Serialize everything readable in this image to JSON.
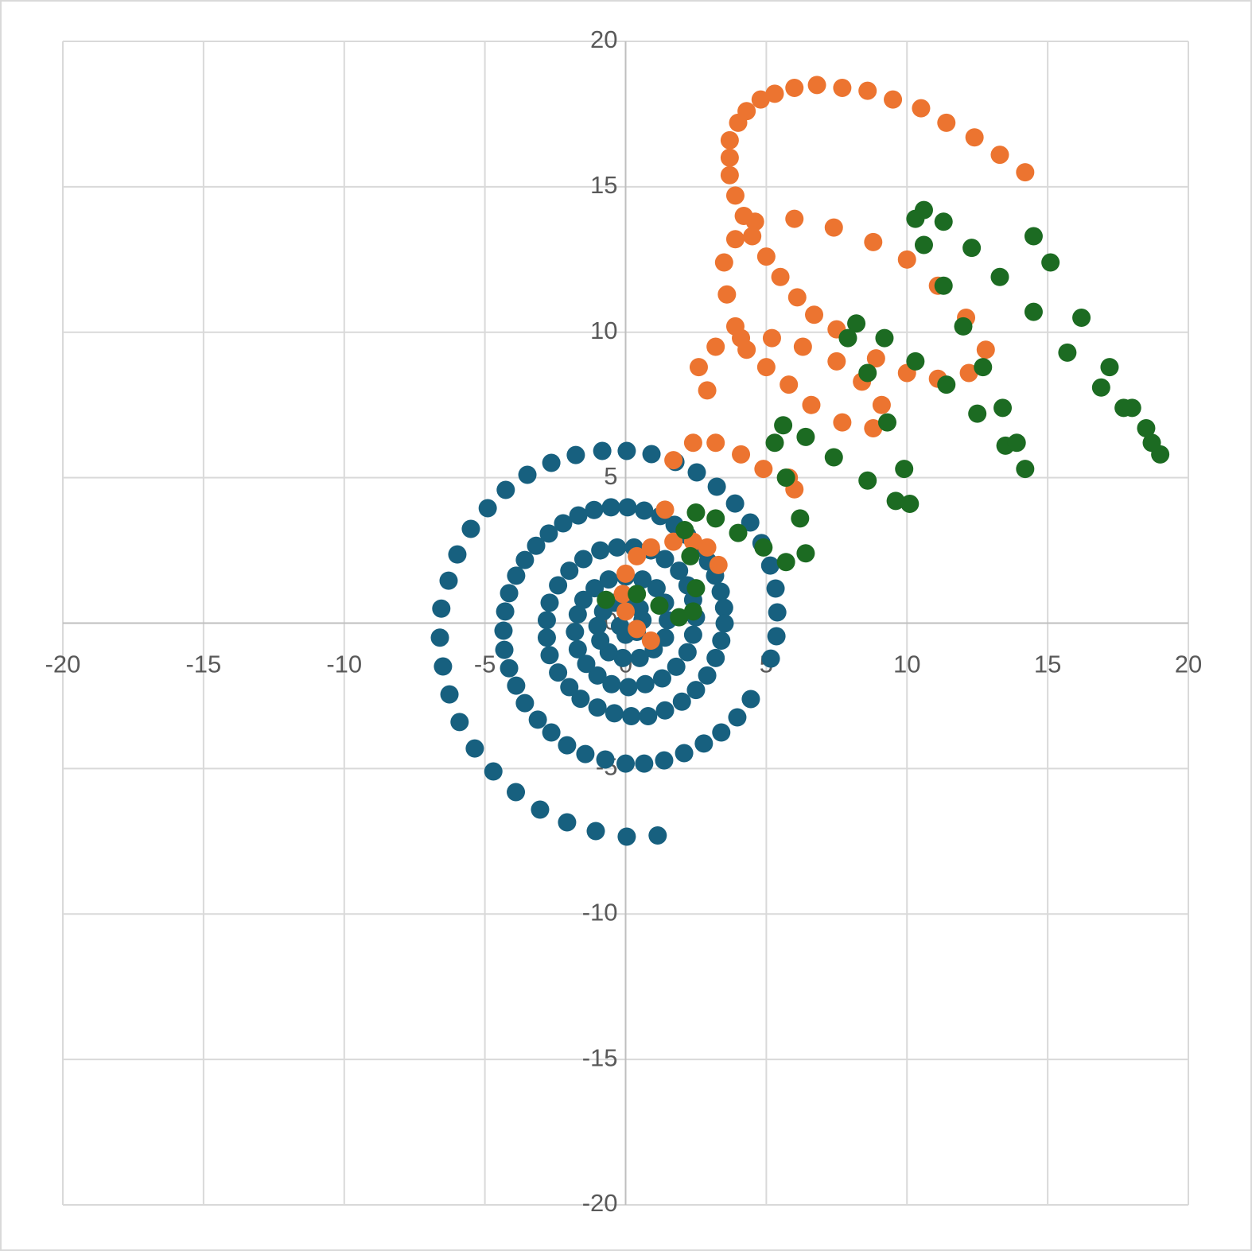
{
  "chart_data": {
    "type": "scatter",
    "grid": true,
    "xlim": [
      -20,
      20
    ],
    "ylim": [
      -20,
      20
    ],
    "xticks": [
      -20,
      -15,
      -10,
      -5,
      0,
      5,
      10,
      15,
      20
    ],
    "yticks": [
      -20,
      -15,
      -10,
      -5,
      0,
      5,
      10,
      15,
      20
    ],
    "series": [
      {
        "color": "#17607f",
        "x": [
          1.14,
          0.04,
          -1.06,
          -2.08,
          -3.04,
          -3.9,
          -4.7,
          -5.36,
          -5.9,
          -6.26,
          -6.49,
          -6.6,
          -6.55,
          -6.29,
          -5.98,
          -5.5,
          -4.9,
          -4.26,
          -3.49,
          -2.64,
          -1.77,
          -0.83,
          0.04,
          0.92,
          1.77,
          2.53,
          3.24,
          3.89,
          4.43,
          4.83,
          5.14,
          5.33,
          5.39,
          5.36,
          5.16,
          4.45,
          3.97,
          3.4,
          2.78,
          2.08,
          1.37,
          0.66,
          0,
          -0.72,
          -1.43,
          -2.08,
          -2.64,
          -3.12,
          -3.58,
          -3.89,
          -4.14,
          -4.31,
          -4.34,
          -4.28,
          -4.14,
          -3.89,
          -3.58,
          -3.18,
          -2.73,
          -2.22,
          -1.68,
          -1.12,
          -0.52,
          0.07,
          0.66,
          1.23,
          1.74,
          2.19,
          2.59,
          2.93,
          3.18,
          3.38,
          3.5,
          3.52,
          3.4,
          3.2,
          2.9,
          2.5,
          2.0,
          1.4,
          0.8,
          0.2,
          -0.4,
          -1.0,
          -1.6,
          -2.0,
          -2.4,
          -2.7,
          -2.8,
          -2.8,
          -2.7,
          -2.4,
          -2.0,
          -1.5,
          -0.9,
          -0.3,
          0.3,
          0.9,
          1.4,
          1.9,
          2.2,
          2.4,
          2.5,
          2.4,
          2.2,
          1.8,
          1.3,
          0.7,
          0.1,
          -0.5,
          -1.0,
          -1.4,
          -1.7,
          -1.8,
          -1.7,
          -1.5,
          -1.1,
          -0.6,
          0,
          0.6,
          1.1,
          1.4,
          1.5,
          1.4,
          1.0,
          0.5,
          -0.1,
          -0.6,
          -0.9,
          -1.0,
          -0.8,
          -0.4,
          0.1,
          0.5,
          0.6,
          0.4,
          0,
          -0.2
        ],
        "values": [
          -7.3,
          -7.34,
          -7.15,
          -6.85,
          -6.41,
          -5.81,
          -5.1,
          -4.31,
          -3.4,
          -2.45,
          -1.49,
          -0.5,
          0.5,
          1.46,
          2.36,
          3.24,
          3.95,
          4.58,
          5.1,
          5.51,
          5.78,
          5.92,
          5.92,
          5.81,
          5.54,
          5.18,
          4.69,
          4.11,
          3.46,
          2.75,
          1.98,
          1.19,
          0.37,
          -0.45,
          -1.22,
          -2.61,
          -3.24,
          -3.76,
          -4.14,
          -4.47,
          -4.72,
          -4.83,
          -4.83,
          -4.69,
          -4.5,
          -4.2,
          -3.76,
          -3.32,
          -2.75,
          -2.15,
          -1.55,
          -0.92,
          -0.26,
          0.4,
          1.03,
          1.63,
          2.17,
          2.66,
          3.08,
          3.43,
          3.7,
          3.89,
          3.98,
          3.98,
          3.87,
          3.68,
          3.38,
          3.02,
          2.58,
          2.12,
          1.63,
          1.08,
          0.53,
          -0.01,
          -0.6,
          -1.2,
          -1.8,
          -2.3,
          -2.7,
          -3.0,
          -3.2,
          -3.2,
          -3.1,
          -2.9,
          -2.6,
          -2.2,
          -1.7,
          -1.1,
          -0.5,
          0.1,
          0.7,
          1.3,
          1.8,
          2.2,
          2.5,
          2.6,
          2.6,
          2.5,
          2.2,
          1.8,
          1.3,
          0.8,
          0.2,
          -0.4,
          -1.0,
          -1.5,
          -1.9,
          -2.1,
          -2.2,
          -2.1,
          -1.8,
          -1.4,
          -0.9,
          -0.3,
          0.3,
          0.8,
          1.2,
          1.5,
          1.6,
          1.5,
          1.2,
          0.7,
          0.1,
          -0.5,
          -0.9,
          -1.2,
          -1.2,
          -1.0,
          -0.6,
          -0.1,
          0.4,
          0.7,
          0.8,
          0.5,
          0.1,
          -0.3,
          -0.4,
          -0.1
        ]
      },
      {
        "color": "#ec7430",
        "x": [
          0.9,
          0.4,
          0,
          -0.1,
          0,
          0.4,
          0.9,
          1.7,
          2.4,
          2.9,
          3.3,
          1.4,
          1.7,
          2.4,
          3.2,
          4.1,
          4.9,
          5.8,
          6.0,
          2.9,
          2.6,
          3.2,
          4.1,
          5.2,
          6.3,
          7.5,
          8.4,
          9.1,
          8.8,
          7.7,
          6.6,
          5.8,
          5.0,
          4.3,
          3.9,
          3.6,
          3.5,
          3.9,
          4.6,
          6.0,
          7.4,
          8.8,
          10.0,
          11.1,
          12.1,
          12.8,
          12.2,
          11.1,
          10.0,
          8.9,
          7.5,
          6.7,
          6.1,
          5.5,
          5.0,
          4.5,
          4.2,
          3.9,
          3.7,
          3.7,
          3.7,
          4.0,
          4.3,
          4.8,
          5.3,
          6.0,
          6.8,
          7.7,
          8.6,
          9.5,
          10.5,
          11.4,
          12.4,
          13.3,
          14.2
        ],
        "values": [
          -0.6,
          -0.2,
          0.4,
          1.0,
          1.7,
          2.3,
          2.6,
          2.8,
          2.8,
          2.6,
          2.0,
          3.9,
          5.6,
          6.2,
          6.2,
          5.8,
          5.3,
          5.0,
          4.6,
          8.0,
          8.8,
          9.5,
          9.8,
          9.8,
          9.5,
          9.0,
          8.3,
          7.5,
          6.7,
          6.9,
          7.5,
          8.2,
          8.8,
          9.4,
          10.2,
          11.3,
          12.4,
          13.2,
          13.8,
          13.9,
          13.6,
          13.1,
          12.5,
          11.6,
          10.5,
          9.4,
          8.6,
          8.4,
          8.6,
          9.1,
          10.1,
          10.6,
          11.2,
          11.9,
          12.6,
          13.3,
          14.0,
          14.7,
          15.4,
          16.0,
          16.6,
          17.2,
          17.6,
          18.0,
          18.2,
          18.4,
          18.5,
          18.4,
          18.3,
          18.0,
          17.7,
          17.2,
          16.7,
          16.1,
          15.5
        ]
      },
      {
        "color": "#1c6b22",
        "x": [
          -0.7,
          0.4,
          1.2,
          1.9,
          2.4,
          2.5,
          2.3,
          2.1,
          2.5,
          3.2,
          4.0,
          4.9,
          5.7,
          6.4,
          6.2,
          5.7,
          5.3,
          5.6,
          6.4,
          7.4,
          8.6,
          9.6,
          10.1,
          9.9,
          9.3,
          8.6,
          7.9,
          8.2,
          9.2,
          10.3,
          11.4,
          12.5,
          13.5,
          14.2,
          13.9,
          13.4,
          12.7,
          12.0,
          11.3,
          10.6,
          10.3,
          10.6,
          11.3,
          12.3,
          13.3,
          14.5,
          15.7,
          16.9,
          17.7,
          18.5,
          19.0,
          18.7,
          18.0,
          17.2,
          16.2,
          15.1,
          14.5
        ],
        "values": [
          0.8,
          1.0,
          0.6,
          0.2,
          0.4,
          1.2,
          2.3,
          3.2,
          3.8,
          3.6,
          3.1,
          2.6,
          2.1,
          2.4,
          3.6,
          5.0,
          6.2,
          6.8,
          6.4,
          5.7,
          4.9,
          4.2,
          4.1,
          5.3,
          6.9,
          8.6,
          9.8,
          10.3,
          9.8,
          9.0,
          8.2,
          7.2,
          6.1,
          5.3,
          6.2,
          7.4,
          8.8,
          10.2,
          11.6,
          13.0,
          13.9,
          14.2,
          13.8,
          12.9,
          11.9,
          10.7,
          9.3,
          8.1,
          7.4,
          6.7,
          5.8,
          6.2,
          7.4,
          8.8,
          10.5,
          12.4,
          13.3
        ]
      }
    ]
  }
}
